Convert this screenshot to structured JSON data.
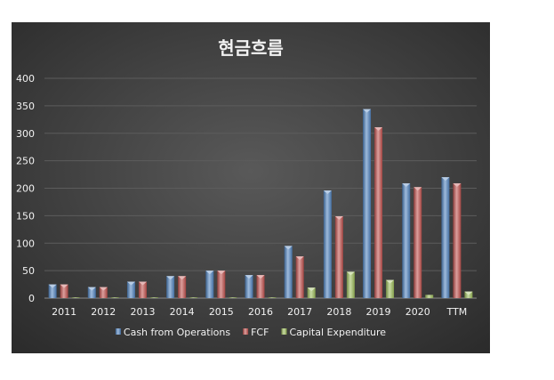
{
  "chart_data": {
    "type": "bar",
    "title": "현금흐름",
    "xlabel": "",
    "ylabel": "",
    "categories": [
      "2011",
      "2012",
      "2013",
      "2014",
      "2015",
      "2016",
      "2017",
      "2018",
      "2019",
      "2020",
      "TTM"
    ],
    "ylim": [
      0,
      400
    ],
    "yticks": [
      0,
      50,
      100,
      150,
      200,
      250,
      300,
      350,
      400
    ],
    "grid": true,
    "legend_position": "bottom",
    "series": [
      {
        "name": "Cash from Operations",
        "color": "#4f81bd",
        "values": [
          25,
          20,
          30,
          40,
          50,
          42,
          95,
          196,
          344,
          209,
          220
        ]
      },
      {
        "name": "FCF",
        "color": "#c0504d",
        "values": [
          25,
          20,
          30,
          40,
          50,
          42,
          76,
          149,
          311,
          202,
          209
        ]
      },
      {
        "name": "Capital Expenditure",
        "color": "#9bbb59",
        "values": [
          0,
          1,
          1,
          1,
          1,
          1,
          19,
          48,
          33,
          6,
          12
        ]
      }
    ]
  }
}
